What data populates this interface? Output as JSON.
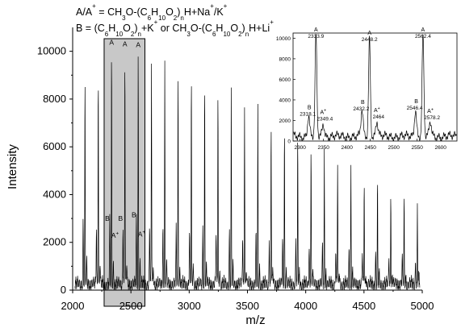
{
  "legend": {
    "line1": {
      "pre": "A/A",
      "sup1": "+",
      "mid1": " = CH",
      "sub1": "3",
      "mid2": "O-(C",
      "sub2": "6",
      "mid3": "H",
      "sub3": "10",
      "mid4": "O",
      "sub4": "2",
      "mid5": ")",
      "sub5": "n",
      "post": "H+Na",
      "sup2": "+",
      "post2": "/K",
      "sup3": "+"
    },
    "line2": {
      "pre": "B = (C",
      "sub1": "6",
      "mid1": "H",
      "sub2": "10",
      "mid2": "O",
      "sub3": "2",
      "mid3": ")",
      "sub4": "n",
      "mid4": "+K",
      "sup1": "+",
      "mid5": " or CH",
      "sub5": "3",
      "mid6": "O-(C",
      "sub6": "6",
      "mid7": "H",
      "sub7": "10",
      "mid8": "O",
      "sub8": "2",
      "mid9": ")",
      "sub9": "n",
      "post": "H+Li",
      "sup2": "+"
    }
  },
  "chart_data": [
    {
      "type": "line",
      "title": "",
      "xlabel": "m/z",
      "ylabel": "Intensity",
      "xlim": [
        2000,
        5000
      ],
      "ylim": [
        0,
        11000
      ],
      "xticks": [
        2000,
        2500,
        3000,
        3500,
        4000,
        4500,
        5000
      ],
      "yticks": [
        0,
        2000,
        4000,
        6000,
        8000,
        10000
      ],
      "highlight_region": [
        2270,
        2620
      ],
      "peak_spacing": 114.1,
      "series": [
        {
          "type": "A",
          "x": [
            2105.7,
            2219.8,
            2333.9,
            2448.2,
            2562.4,
            2676.3,
            2790.4,
            2904.5,
            3018.6,
            3132.7,
            3246.8,
            3360.9,
            3475.0,
            3589.1,
            3703.2,
            3817.3,
            3931.4,
            4045.5,
            4159.6,
            4273.7,
            4387.8,
            4501.9,
            4616.0,
            4730.1,
            4844.2,
            4958.3
          ],
          "y": [
            8550,
            9150,
            9870,
            9800,
            9780,
            9380,
            9250,
            9060,
            8850,
            8580,
            8330,
            7970,
            7650,
            7290,
            6940,
            6580,
            6260,
            5860,
            5540,
            5150,
            4870,
            4520,
            4270,
            3970,
            3650,
            3330
          ]
        },
        {
          "type": "B",
          "x": [
            2090,
            2204,
            2318.1,
            2432.2,
            2546.4,
            2660.4,
            2774.5,
            2888.6,
            3002.7,
            3116.8,
            3230.9,
            3345.0,
            3459.1,
            3573.2,
            3687.3,
            3801.4,
            3915.5,
            4029.6,
            4143.7,
            4257.8,
            4371.9,
            4486.0,
            4600.1,
            4714.2,
            4828.3,
            4942.4
          ],
          "y": [
            2600,
            2550,
            2550,
            2550,
            2700,
            2450,
            2450,
            2400,
            2350,
            2300,
            2250,
            2150,
            2100,
            2050,
            1950,
            1900,
            1800,
            1700,
            1600,
            1550,
            1450,
            1350,
            1300,
            1200,
            1150,
            1050
          ]
        },
        {
          "type": "A+",
          "x": [
            2121,
            2235,
            2349.4,
            2464,
            2578.2,
            2692,
            2806,
            2920,
            3034,
            3148,
            3262,
            3376,
            3490,
            3604,
            3718,
            3832,
            3946,
            4060,
            4174,
            4288,
            4402,
            4516,
            4630,
            4744,
            4858,
            4972
          ],
          "y": [
            1000,
            950,
            900,
            900,
            950,
            900,
            880,
            860,
            840,
            820,
            800,
            770,
            740,
            710,
            680,
            650,
            620,
            590,
            560,
            530,
            500,
            470,
            440,
            410,
            380,
            350
          ]
        }
      ],
      "annotations": [
        {
          "label": "A",
          "x": 2333.9,
          "type": "A"
        },
        {
          "label": "A",
          "x": 2448.2,
          "type": "A"
        },
        {
          "label": "A",
          "x": 2562.4,
          "type": "A"
        },
        {
          "label": "B",
          "x": 2318.1,
          "type": "B"
        },
        {
          "label": "B",
          "x": 2432.2,
          "type": "B"
        },
        {
          "label": "B",
          "x": 2546.4,
          "type": "B"
        },
        {
          "label": "A+",
          "x": 2349.4,
          "type": "A+"
        },
        {
          "label": "A+",
          "x": 2578.2,
          "type": "A+"
        }
      ]
    },
    {
      "type": "line",
      "title": "",
      "xlabel": "",
      "ylabel": "",
      "xlim": [
        2285,
        2635
      ],
      "ylim": [
        0,
        10500
      ],
      "xticks": [
        2300,
        2350,
        2400,
        2450,
        2500,
        2550,
        2600
      ],
      "yticks": [
        0,
        2000,
        4000,
        6000,
        8000,
        10000
      ],
      "peaks": [
        {
          "x": 2318.1,
          "y": 2000,
          "label_type": "B",
          "value_label": "2318.1"
        },
        {
          "x": 2333.9,
          "y": 9800,
          "label_type": "A",
          "value_label": "2333.9"
        },
        {
          "x": 2349.4,
          "y": 1300,
          "label_type": "A+",
          "value_label": "2349.4"
        },
        {
          "x": 2432.2,
          "y": 2500,
          "label_type": "B",
          "value_label": "2432.2"
        },
        {
          "x": 2448.2,
          "y": 9500,
          "label_type": "A",
          "value_label": "2448.2"
        },
        {
          "x": 2464,
          "y": 1500,
          "label_type": "A+",
          "value_label": "2464"
        },
        {
          "x": 2546.4,
          "y": 2600,
          "label_type": "B",
          "value_label": "2546.4"
        },
        {
          "x": 2562.4,
          "y": 9800,
          "label_type": "A",
          "value_label": "2562.4"
        },
        {
          "x": 2578.2,
          "y": 1400,
          "label_type": "A+",
          "value_label": "2578.2"
        }
      ]
    }
  ]
}
